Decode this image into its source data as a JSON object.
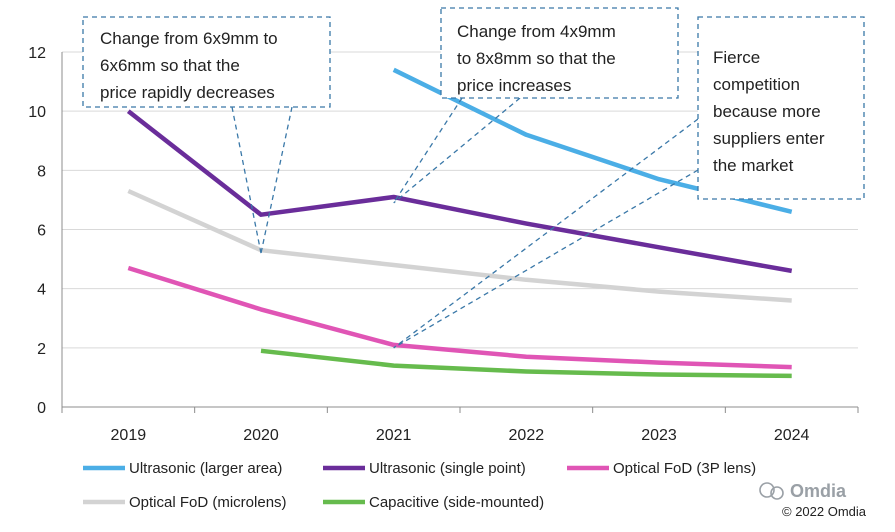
{
  "chart_data": {
    "type": "line",
    "categories": [
      "2019",
      "2020",
      "2021",
      "2022",
      "2023",
      "2024"
    ],
    "ylim": [
      0,
      12
    ],
    "yticks": [
      "0",
      "2",
      "4",
      "6",
      "8",
      "10",
      "12"
    ],
    "grid": "horizontal",
    "legend_position": "bottom",
    "series": [
      {
        "name": "Ultrasonic (larger area)",
        "color": "#4baee6",
        "values": [
          null,
          null,
          11.4,
          9.2,
          7.7,
          6.6
        ]
      },
      {
        "name": "Ultrasonic (single point)",
        "color": "#6a2d9a",
        "values": [
          10.0,
          6.5,
          7.1,
          6.2,
          5.4,
          4.6
        ]
      },
      {
        "name": "Optical FoD (3P lens)",
        "color": "#e055b5",
        "values": [
          4.7,
          3.3,
          2.1,
          1.7,
          1.5,
          1.35
        ]
      },
      {
        "name": "Optical FoD (microlens)",
        "color": "#d3d3d3",
        "values": [
          7.3,
          5.3,
          4.8,
          4.3,
          3.9,
          3.6
        ]
      },
      {
        "name": "Capacitive (side-mounted)",
        "color": "#66bb4d",
        "values": [
          null,
          1.9,
          1.4,
          1.2,
          1.1,
          1.05
        ]
      }
    ],
    "annotations": [
      {
        "lines": [
          "Change from 6x9mm to",
          "6x6mm so that the",
          "price rapidly decreases"
        ],
        "leaders": [
          {
            "x": "2020",
            "y": 5.2
          }
        ]
      },
      {
        "lines": [
          "Change from 4x9mm",
          "to 8x8mm so that the",
          "price increases"
        ],
        "leaders": [
          {
            "x": "2021",
            "y": 6.9
          }
        ]
      },
      {
        "lines": [
          "Fierce",
          "competition",
          "because more",
          "suppliers enter",
          "the market"
        ],
        "leaders": [
          {
            "x": "2021",
            "y": 2.0
          }
        ]
      }
    ]
  },
  "brand": "Omdia",
  "credit": "© 2022 Omdia"
}
